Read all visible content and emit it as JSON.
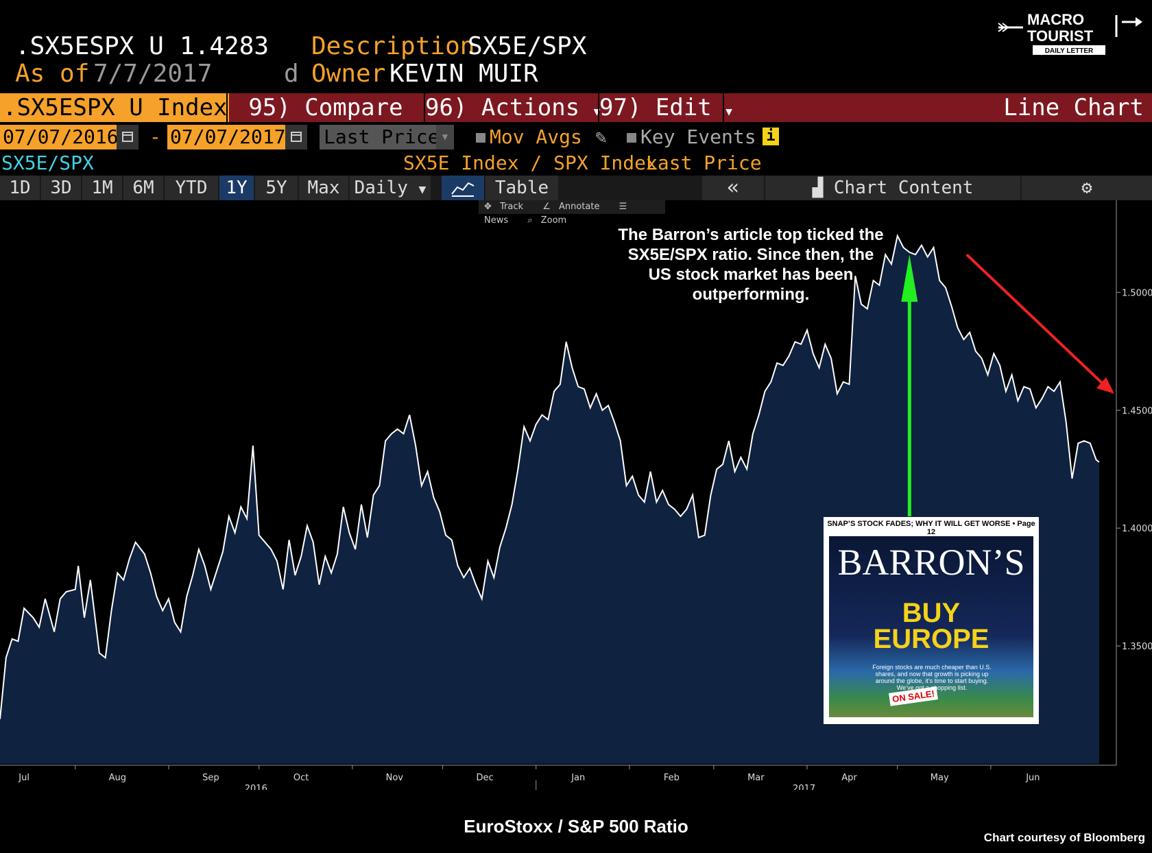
{
  "header": {
    "ticker": ".SX5ESPX U",
    "last_value": "1.4283",
    "desc_label": "Description",
    "desc_value": "SX5E/SPX",
    "asof_label": "As of",
    "asof_value": "7/7/2017",
    "d_label": "d",
    "owner_label": "Owner",
    "owner_value": "KEVIN MUIR"
  },
  "logo": {
    "line1": "MACRO",
    "line2": "TOURIST",
    "line3": "DAILY LETTER"
  },
  "menu": {
    "index_label": ".SX5ESPX U Index",
    "compare": "95) Compare",
    "actions": "96) Actions",
    "edit": "97) Edit",
    "chart_type": "Line Chart"
  },
  "controls": {
    "start_date": "07/07/2016",
    "dash": "-",
    "end_date": "07/07/2017",
    "field": "Last Price",
    "mov_avgs": "Mov Avgs",
    "key_events": "Key Events",
    "info_icon": "i"
  },
  "legend": {
    "left": "SX5E/SPX",
    "formula": "SX5E Index / SPX Index",
    "field": "Last Price"
  },
  "tabs": {
    "periods": [
      "1D",
      "3D",
      "1M",
      "6M",
      "YTD",
      "1Y",
      "5Y",
      "Max"
    ],
    "selected": "1Y",
    "frequency": "Daily",
    "table": "Table",
    "collapse": "«",
    "chart_content": "Chart Content"
  },
  "tools": {
    "track": "Track",
    "annotate": "Annotate",
    "news": "News",
    "zoom": "Zoom"
  },
  "annotation": "The Barron’s article top ticked the SX5E/SPX ratio.  Since then, the US stock market has been outperforming.",
  "cover": {
    "top_line": "SNAP’S STOCK FADES; WHY IT WILL GET WORSE • Page 12",
    "brand": "BARRON’S",
    "headline1": "BUY",
    "headline2": "EUROPE",
    "subtext": "Foreign stocks are much cheaper than U.S. shares, and now that growth is picking up around the globe, it’s time to start buying. We’ve got a shopping list.",
    "sale": "ON SALE!"
  },
  "caption": "EuroStoxx / S&P 500 Ratio",
  "credit": "Chart courtesy of Bloomberg",
  "colors": {
    "accent": "#f5a12a",
    "menu_bg": "#7d1820",
    "area": "#0f2240",
    "line": "#ffffff",
    "up_arrow": "#22ee22",
    "down_arrow": "#ee2222"
  },
  "chart_data": {
    "type": "area",
    "series_name": "SX5E/SPX",
    "x_range": [
      "2016-07-07",
      "2017-07-07"
    ],
    "ylim": [
      1.3,
      1.535
    ],
    "y_ticks": [
      1.35,
      1.4,
      1.45,
      1.5
    ],
    "y_tick_labels": [
      "1.3500",
      "1.4000",
      "1.4500",
      "1.5000"
    ],
    "x_ticks": [
      {
        "date": "2016-07-15",
        "label": "Jul"
      },
      {
        "date": "2016-08-15",
        "label": "Aug"
      },
      {
        "date": "2016-09-15",
        "label": "Sep"
      },
      {
        "date": "2016-10-15",
        "label": "Oct"
      },
      {
        "date": "2016-11-15",
        "label": "Nov"
      },
      {
        "date": "2016-12-15",
        "label": "Dec"
      },
      {
        "date": "2017-01-15",
        "label": "Jan"
      },
      {
        "date": "2017-02-15",
        "label": "Feb"
      },
      {
        "date": "2017-03-15",
        "label": "Mar"
      },
      {
        "date": "2017-04-15",
        "label": "Apr"
      },
      {
        "date": "2017-05-15",
        "label": "May"
      },
      {
        "date": "2017-06-15",
        "label": "Jun"
      }
    ],
    "year_labels": [
      {
        "date": "2016-09-30",
        "label": "2016"
      },
      {
        "date": "2017-03-31",
        "label": "2017"
      }
    ],
    "last_value": 1.4283,
    "points": [
      [
        "2016-07-07",
        1.319
      ],
      [
        "2016-07-09",
        1.345
      ],
      [
        "2016-07-11",
        1.353
      ],
      [
        "2016-07-13",
        1.352
      ],
      [
        "2016-07-15",
        1.366
      ],
      [
        "2016-07-18",
        1.362
      ],
      [
        "2016-07-20",
        1.358
      ],
      [
        "2016-07-22",
        1.37
      ],
      [
        "2016-07-25",
        1.356
      ],
      [
        "2016-07-27",
        1.37
      ],
      [
        "2016-07-29",
        1.373
      ],
      [
        "2016-08-01",
        1.374
      ],
      [
        "2016-08-02",
        1.384
      ],
      [
        "2016-08-04",
        1.362
      ],
      [
        "2016-08-06",
        1.378
      ],
      [
        "2016-08-09",
        1.347
      ],
      [
        "2016-08-11",
        1.345
      ],
      [
        "2016-08-13",
        1.365
      ],
      [
        "2016-08-15",
        1.381
      ],
      [
        "2016-08-17",
        1.378
      ],
      [
        "2016-08-19",
        1.387
      ],
      [
        "2016-08-21",
        1.394
      ],
      [
        "2016-08-24",
        1.389
      ],
      [
        "2016-08-26",
        1.381
      ],
      [
        "2016-08-28",
        1.371
      ],
      [
        "2016-08-30",
        1.365
      ],
      [
        "2016-09-01",
        1.37
      ],
      [
        "2016-09-03",
        1.36
      ],
      [
        "2016-09-05",
        1.356
      ],
      [
        "2016-09-07",
        1.371
      ],
      [
        "2016-09-09",
        1.38
      ],
      [
        "2016-09-11",
        1.391
      ],
      [
        "2016-09-13",
        1.384
      ],
      [
        "2016-09-15",
        1.374
      ],
      [
        "2016-09-17",
        1.382
      ],
      [
        "2016-09-19",
        1.39
      ],
      [
        "2016-09-21",
        1.405
      ],
      [
        "2016-09-23",
        1.398
      ],
      [
        "2016-09-25",
        1.409
      ],
      [
        "2016-09-27",
        1.404
      ],
      [
        "2016-09-29",
        1.435
      ],
      [
        "2016-10-01",
        1.397
      ],
      [
        "2016-10-03",
        1.394
      ],
      [
        "2016-10-05",
        1.391
      ],
      [
        "2016-10-07",
        1.386
      ],
      [
        "2016-10-09",
        1.374
      ],
      [
        "2016-10-11",
        1.395
      ],
      [
        "2016-10-13",
        1.38
      ],
      [
        "2016-10-15",
        1.388
      ],
      [
        "2016-10-17",
        1.401
      ],
      [
        "2016-10-19",
        1.394
      ],
      [
        "2016-10-21",
        1.376
      ],
      [
        "2016-10-23",
        1.388
      ],
      [
        "2016-10-25",
        1.381
      ],
      [
        "2016-10-27",
        1.389
      ],
      [
        "2016-10-29",
        1.409
      ],
      [
        "2016-10-31",
        1.398
      ],
      [
        "2016-11-02",
        1.391
      ],
      [
        "2016-11-04",
        1.41
      ],
      [
        "2016-11-06",
        1.396
      ],
      [
        "2016-11-08",
        1.414
      ],
      [
        "2016-11-10",
        1.418
      ],
      [
        "2016-11-12",
        1.437
      ],
      [
        "2016-11-14",
        1.44
      ],
      [
        "2016-11-16",
        1.442
      ],
      [
        "2016-11-18",
        1.44
      ],
      [
        "2016-11-20",
        1.448
      ],
      [
        "2016-11-22",
        1.435
      ],
      [
        "2016-11-24",
        1.418
      ],
      [
        "2016-11-26",
        1.424
      ],
      [
        "2016-11-28",
        1.413
      ],
      [
        "2016-11-30",
        1.407
      ],
      [
        "2016-12-02",
        1.397
      ],
      [
        "2016-12-04",
        1.395
      ],
      [
        "2016-12-06",
        1.384
      ],
      [
        "2016-12-08",
        1.379
      ],
      [
        "2016-12-10",
        1.383
      ],
      [
        "2016-12-12",
        1.376
      ],
      [
        "2016-12-14",
        1.37
      ],
      [
        "2016-12-16",
        1.386
      ],
      [
        "2016-12-18",
        1.379
      ],
      [
        "2016-12-20",
        1.392
      ],
      [
        "2016-12-22",
        1.4
      ],
      [
        "2016-12-24",
        1.41
      ],
      [
        "2016-12-26",
        1.425
      ],
      [
        "2016-12-28",
        1.443
      ],
      [
        "2016-12-30",
        1.437
      ],
      [
        "2017-01-01",
        1.444
      ],
      [
        "2017-01-03",
        1.448
      ],
      [
        "2017-01-05",
        1.446
      ],
      [
        "2017-01-07",
        1.458
      ],
      [
        "2017-01-09",
        1.461
      ],
      [
        "2017-01-11",
        1.479
      ],
      [
        "2017-01-13",
        1.468
      ],
      [
        "2017-01-15",
        1.46
      ],
      [
        "2017-01-17",
        1.459
      ],
      [
        "2017-01-19",
        1.451
      ],
      [
        "2017-01-21",
        1.457
      ],
      [
        "2017-01-23",
        1.45
      ],
      [
        "2017-01-25",
        1.452
      ],
      [
        "2017-01-27",
        1.445
      ],
      [
        "2017-01-29",
        1.437
      ],
      [
        "2017-01-31",
        1.418
      ],
      [
        "2017-02-02",
        1.422
      ],
      [
        "2017-02-04",
        1.414
      ],
      [
        "2017-02-06",
        1.411
      ],
      [
        "2017-02-08",
        1.424
      ],
      [
        "2017-02-10",
        1.411
      ],
      [
        "2017-02-12",
        1.416
      ],
      [
        "2017-02-14",
        1.41
      ],
      [
        "2017-02-16",
        1.408
      ],
      [
        "2017-02-18",
        1.405
      ],
      [
        "2017-02-20",
        1.408
      ],
      [
        "2017-02-22",
        1.414
      ],
      [
        "2017-02-24",
        1.396
      ],
      [
        "2017-02-26",
        1.397
      ],
      [
        "2017-02-28",
        1.414
      ],
      [
        "2017-03-02",
        1.425
      ],
      [
        "2017-03-04",
        1.427
      ],
      [
        "2017-03-06",
        1.437
      ],
      [
        "2017-03-08",
        1.424
      ],
      [
        "2017-03-10",
        1.43
      ],
      [
        "2017-03-12",
        1.425
      ],
      [
        "2017-03-14",
        1.44
      ],
      [
        "2017-03-16",
        1.448
      ],
      [
        "2017-03-18",
        1.458
      ],
      [
        "2017-03-20",
        1.462
      ],
      [
        "2017-03-22",
        1.47
      ],
      [
        "2017-03-24",
        1.469
      ],
      [
        "2017-03-26",
        1.473
      ],
      [
        "2017-03-28",
        1.479
      ],
      [
        "2017-03-30",
        1.478
      ],
      [
        "2017-04-01",
        1.484
      ],
      [
        "2017-04-03",
        1.474
      ],
      [
        "2017-04-05",
        1.468
      ],
      [
        "2017-04-07",
        1.478
      ],
      [
        "2017-04-09",
        1.472
      ],
      [
        "2017-04-11",
        1.457
      ],
      [
        "2017-04-13",
        1.462
      ],
      [
        "2017-04-15",
        1.461
      ],
      [
        "2017-04-17",
        1.507
      ],
      [
        "2017-04-19",
        1.495
      ],
      [
        "2017-04-21",
        1.493
      ],
      [
        "2017-04-23",
        1.505
      ],
      [
        "2017-04-25",
        1.503
      ],
      [
        "2017-04-27",
        1.516
      ],
      [
        "2017-04-29",
        1.512
      ],
      [
        "2017-05-01",
        1.524
      ],
      [
        "2017-05-03",
        1.519
      ],
      [
        "2017-05-05",
        1.517
      ],
      [
        "2017-05-07",
        1.516
      ],
      [
        "2017-05-09",
        1.52
      ],
      [
        "2017-05-11",
        1.515
      ],
      [
        "2017-05-13",
        1.519
      ],
      [
        "2017-05-15",
        1.505
      ],
      [
        "2017-05-17",
        1.502
      ],
      [
        "2017-05-19",
        1.494
      ],
      [
        "2017-05-21",
        1.485
      ],
      [
        "2017-05-23",
        1.48
      ],
      [
        "2017-05-25",
        1.483
      ],
      [
        "2017-05-27",
        1.475
      ],
      [
        "2017-05-29",
        1.472
      ],
      [
        "2017-05-31",
        1.465
      ],
      [
        "2017-06-02",
        1.474
      ],
      [
        "2017-06-04",
        1.469
      ],
      [
        "2017-06-06",
        1.458
      ],
      [
        "2017-06-08",
        1.465
      ],
      [
        "2017-06-10",
        1.454
      ],
      [
        "2017-06-12",
        1.46
      ],
      [
        "2017-06-14",
        1.459
      ],
      [
        "2017-06-16",
        1.451
      ],
      [
        "2017-06-18",
        1.455
      ],
      [
        "2017-06-20",
        1.46
      ],
      [
        "2017-06-22",
        1.458
      ],
      [
        "2017-06-24",
        1.462
      ],
      [
        "2017-06-26",
        1.445
      ],
      [
        "2017-06-28",
        1.421
      ],
      [
        "2017-06-30",
        1.436
      ],
      [
        "2017-07-02",
        1.437
      ],
      [
        "2017-07-04",
        1.436
      ],
      [
        "2017-07-06",
        1.429
      ],
      [
        "2017-07-07",
        1.428
      ]
    ]
  }
}
